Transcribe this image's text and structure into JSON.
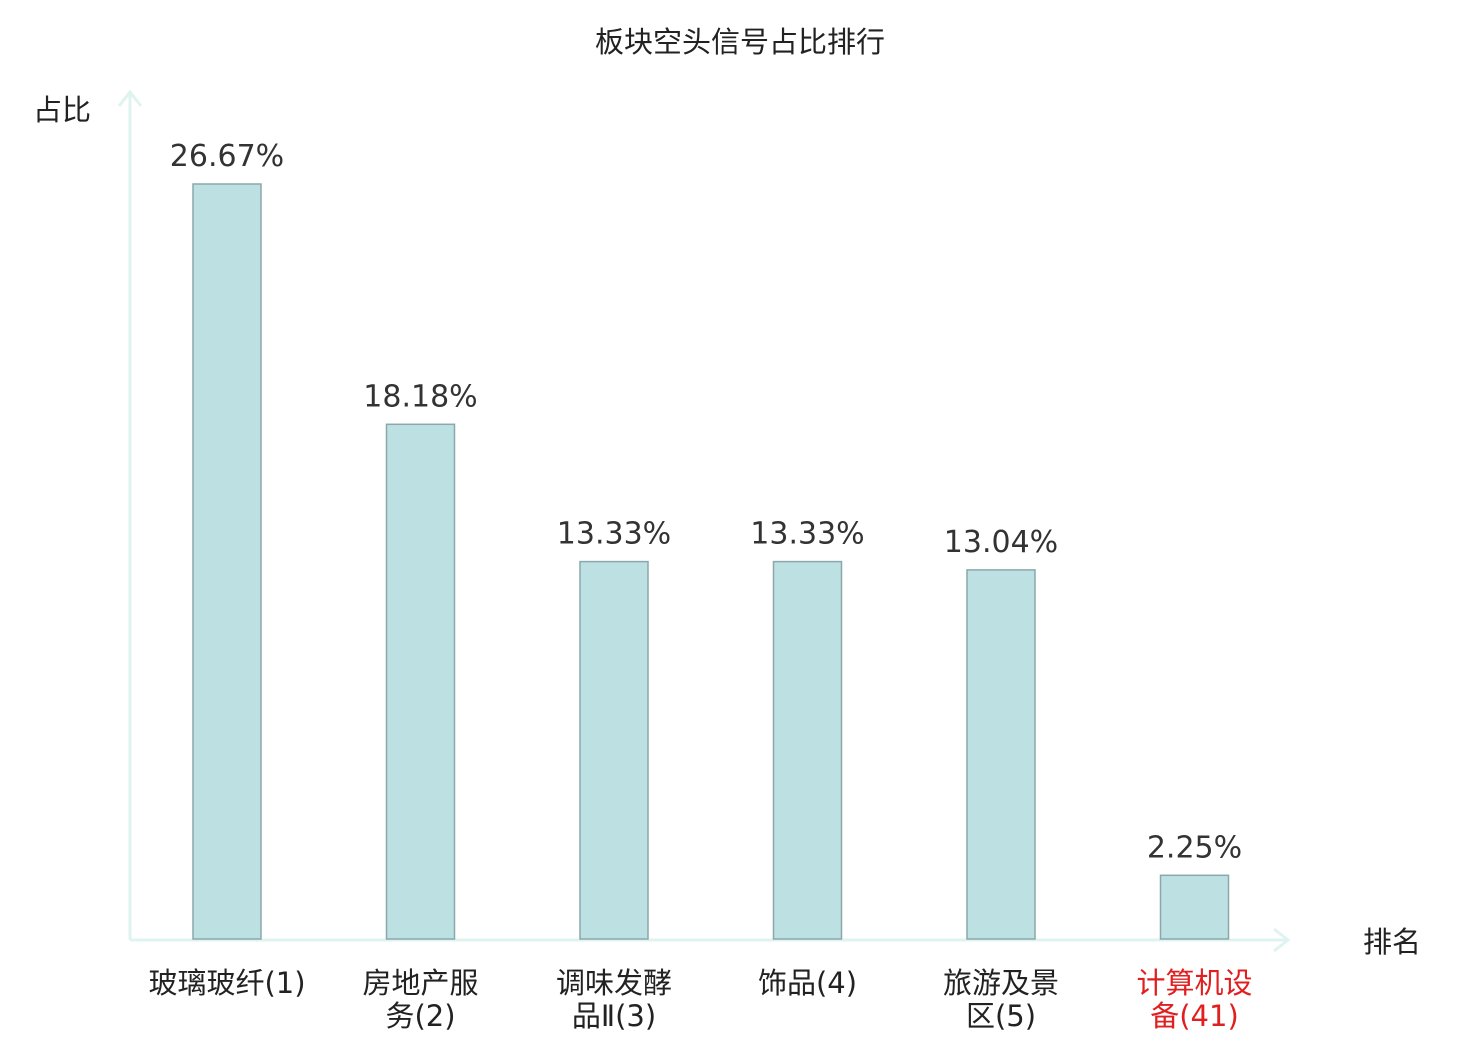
{
  "chart_data": {
    "type": "bar",
    "title": "板块空头信号占比排行",
    "ylabel": "占比",
    "xlabel": "排名",
    "categories": [
      [
        "玻璃玻纤(1)"
      ],
      [
        "房地产服",
        "务(2)"
      ],
      [
        "调味发酵",
        "品Ⅱ(3)"
      ],
      [
        "饰品(4)"
      ],
      [
        "旅游及景",
        "区(5)"
      ],
      [
        "计算机设",
        "备(41)"
      ]
    ],
    "values": [
      26.67,
      18.18,
      13.33,
      13.33,
      13.04,
      2.25
    ],
    "value_labels": [
      "26.67%",
      "18.18%",
      "13.33%",
      "13.33%",
      "13.04%",
      "2.25%"
    ],
    "highlight_index": 5,
    "ylim": [
      0,
      28
    ],
    "grid": false,
    "legend": "none",
    "colors": {
      "bar_fill": "#bde0e3",
      "bar_stroke": "#8aa8ab",
      "axis": "#dff3f0",
      "text": "#222222",
      "value_label": "#333333",
      "highlight": "#e02020"
    }
  }
}
